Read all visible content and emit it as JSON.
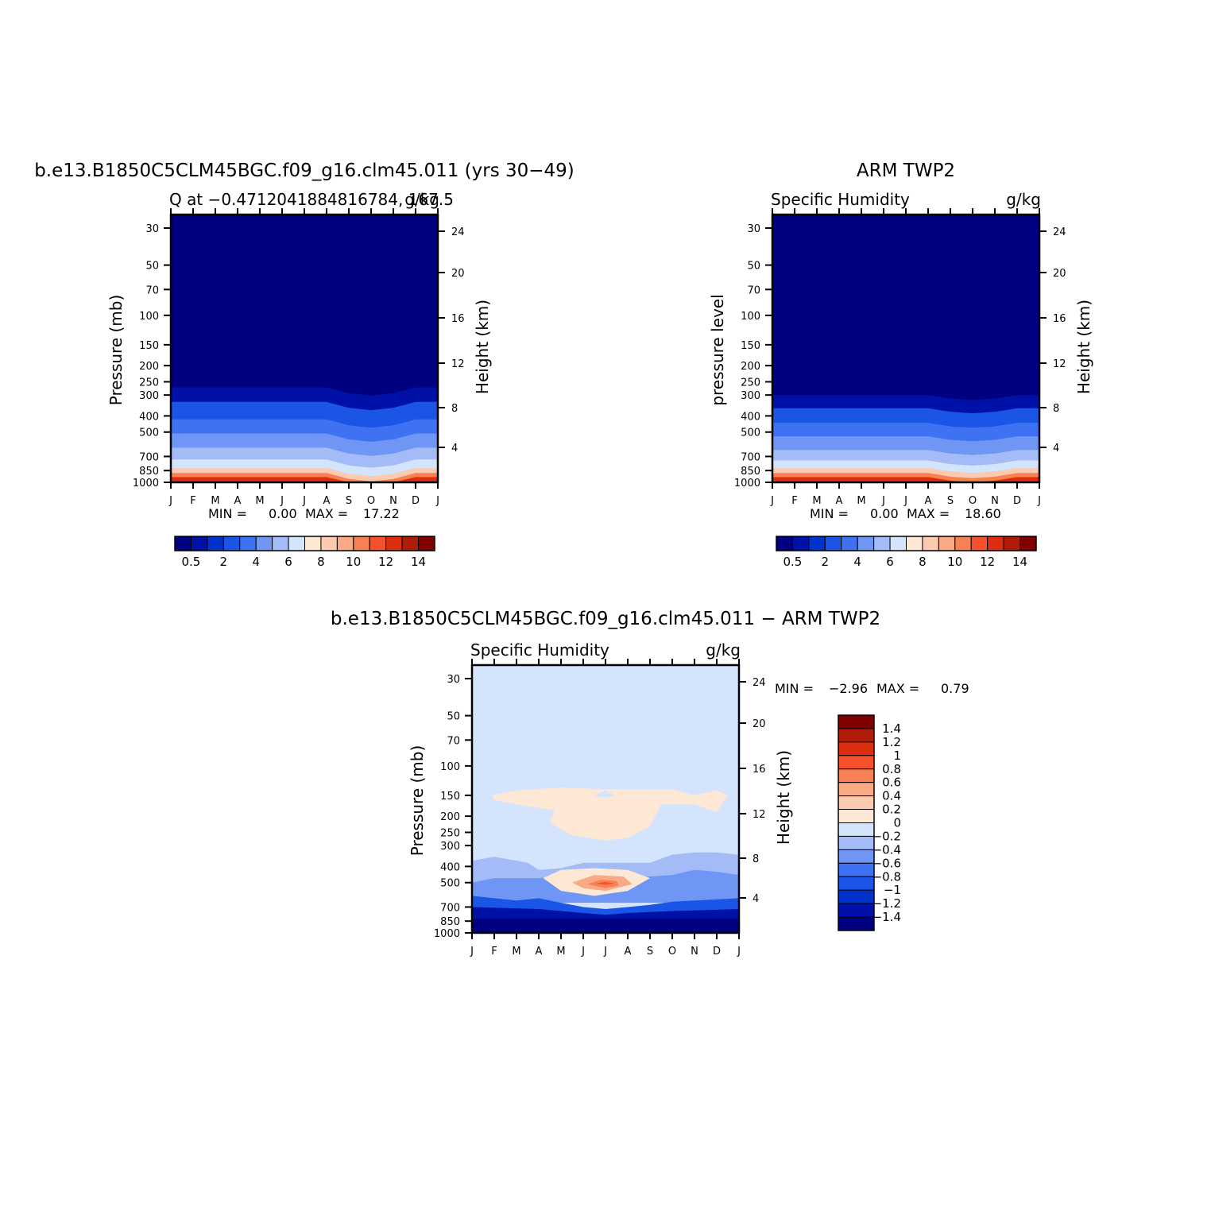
{
  "figure": {
    "panel1_title": "b.e13.B1850C5CLM45BGC.f09_g16.clm45.011 (yrs 30−49)",
    "panel2_title": "ARM TWP2",
    "panel3_title": "b.e13.B1850C5CLM45BGC.f09_g16.clm45.011 − ARM TWP2"
  },
  "chart_data": [
    {
      "type": "heatmap",
      "title": "b.e13.B1850C5CLM45BGC.f09_g16.clm45.011 (yrs 30−49)",
      "left_string": "Q at −0.4712041884816784, 167.5",
      "right_string": "g/kg",
      "ylabel": "Pressure (mb)",
      "ylabel_right": "Height (km)",
      "x_ticks": [
        "J",
        "F",
        "M",
        "A",
        "M",
        "J",
        "J",
        "A",
        "S",
        "O",
        "N",
        "D",
        "J"
      ],
      "y_ticks": [
        "30",
        "50",
        "70",
        "100",
        "150",
        "200",
        "250",
        "300",
        "400",
        "500",
        "700",
        "850",
        "1000"
      ],
      "y_right_ticks": [
        "24",
        "20",
        "16",
        "12",
        "8",
        "4"
      ],
      "min_label": "MIN =",
      "min_value": "0.00",
      "max_label": "MAX =",
      "max_value": "17.22",
      "colorbar_labels": [
        "0.5",
        "2",
        "4",
        "6",
        "8",
        "10",
        "12",
        "14"
      ],
      "colorbar_orientation": "horizontal",
      "surface_gradient_p": [
        270,
        330,
        420,
        510,
        620,
        730,
        820,
        880,
        930,
        990
      ]
    },
    {
      "type": "heatmap",
      "title": "ARM TWP2",
      "left_string": "Specific Humidity",
      "right_string": "g/kg",
      "ylabel": "pressure level",
      "ylabel_right": "Height (km)",
      "x_ticks": [
        "J",
        "F",
        "M",
        "A",
        "M",
        "J",
        "J",
        "A",
        "S",
        "O",
        "N",
        "D",
        "J"
      ],
      "y_ticks": [
        "30",
        "50",
        "70",
        "100",
        "150",
        "200",
        "250",
        "300",
        "400",
        "500",
        "700",
        "850",
        "1000"
      ],
      "y_right_ticks": [
        "24",
        "20",
        "16",
        "12",
        "8",
        "4"
      ],
      "min_label": "MIN =",
      "min_value": "0.00",
      "max_label": "MAX =",
      "max_value": "18.60",
      "colorbar_labels": [
        "0.5",
        "2",
        "4",
        "6",
        "8",
        "10",
        "12",
        "14"
      ],
      "colorbar_orientation": "horizontal",
      "surface_gradient_p": [
        300,
        360,
        440,
        530,
        640,
        740,
        820,
        880,
        930,
        990
      ]
    },
    {
      "type": "heatmap",
      "title": "b.e13.B1850C5CLM45BGC.f09_g16.clm45.011 − ARM TWP2",
      "left_string": "Specific Humidity",
      "right_string": "g/kg",
      "ylabel": "Pressure (mb)",
      "ylabel_right": "Height (km)",
      "x_ticks": [
        "J",
        "F",
        "M",
        "A",
        "M",
        "J",
        "J",
        "A",
        "S",
        "O",
        "N",
        "D",
        "J"
      ],
      "y_ticks": [
        "30",
        "50",
        "70",
        "100",
        "150",
        "200",
        "250",
        "300",
        "400",
        "500",
        "700",
        "850",
        "1000"
      ],
      "y_right_ticks": [
        "24",
        "20",
        "16",
        "12",
        "8",
        "4"
      ],
      "min_label": "MIN =",
      "min_value": "−2.96",
      "max_label": "MAX =",
      "max_value": "0.79",
      "colorbar_labels": [
        "1.4",
        "1.2",
        "1",
        "0.8",
        "0.6",
        "0.4",
        "0.2",
        "0",
        "−0.2",
        "−0.4",
        "−0.6",
        "−0.8",
        "−1",
        "−1.2",
        "−1.4"
      ],
      "colorbar_orientation": "vertical"
    }
  ],
  "colormap": {
    "seq": [
      "#000080",
      "#0011a8",
      "#0033cc",
      "#1a55e6",
      "#3f72f2",
      "#6f96f5",
      "#a3bcf7",
      "#d4e4fc",
      "#fde8d6",
      "#fbcaaf",
      "#f9a983",
      "#f78055",
      "#f5522b",
      "#de2e10",
      "#b01c08",
      "#800000"
    ],
    "div": [
      "#800000",
      "#b01c08",
      "#de2e10",
      "#f5522b",
      "#f78055",
      "#f9a983",
      "#fbcaaf",
      "#fde8d6",
      "#d4e4fc",
      "#a3bcf7",
      "#6f96f5",
      "#3f72f2",
      "#1a55e6",
      "#0033cc",
      "#0011a8",
      "#000080"
    ],
    "zero_neg": "#d4e4fc",
    "zero_pos": "#fde8d6"
  }
}
